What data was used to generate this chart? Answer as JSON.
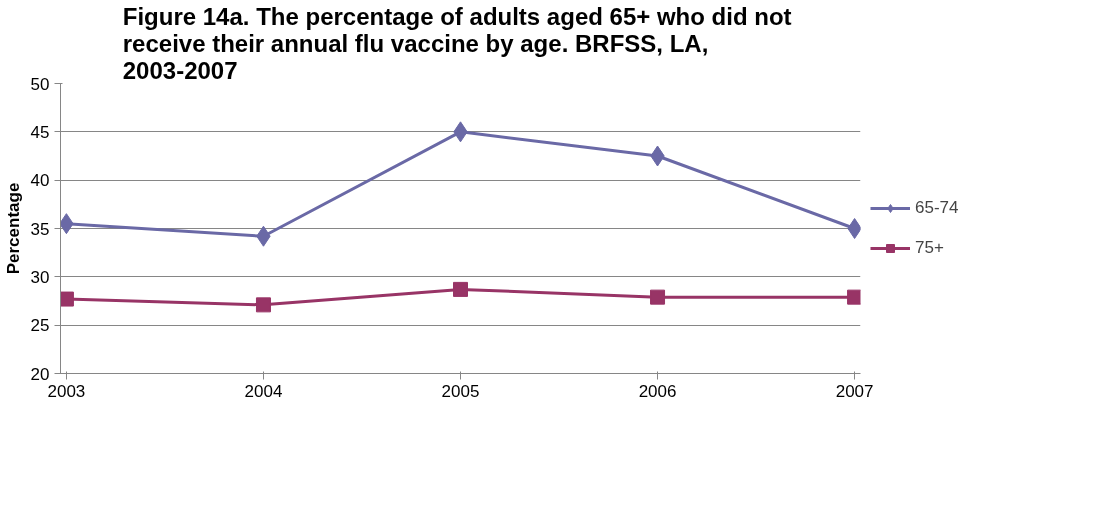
{
  "chart_data": {
    "type": "line",
    "title": "Figure 14a.  The percentage of adults aged 65+ who did not receive their annual flu vaccine by age. BRFSS, LA, 2003-2007",
    "ylabel": "Percentage",
    "categories": [
      "2003",
      "2004",
      "2005",
      "2006",
      "2007"
    ],
    "series": [
      {
        "name": "65-74",
        "color": "#6a69a6",
        "marker": "diamond",
        "values": [
          35.5,
          34.2,
          45,
          42.5,
          35
        ]
      },
      {
        "name": "75+",
        "color": "#983466",
        "marker": "square",
        "values": [
          27.7,
          27.1,
          28.7,
          27.9,
          27.9
        ]
      }
    ],
    "ylim": [
      20,
      50
    ],
    "yticks": [
      20,
      25,
      30,
      35,
      40,
      45,
      50
    ],
    "grid": "y",
    "legend": "right",
    "line_style": "solid"
  }
}
